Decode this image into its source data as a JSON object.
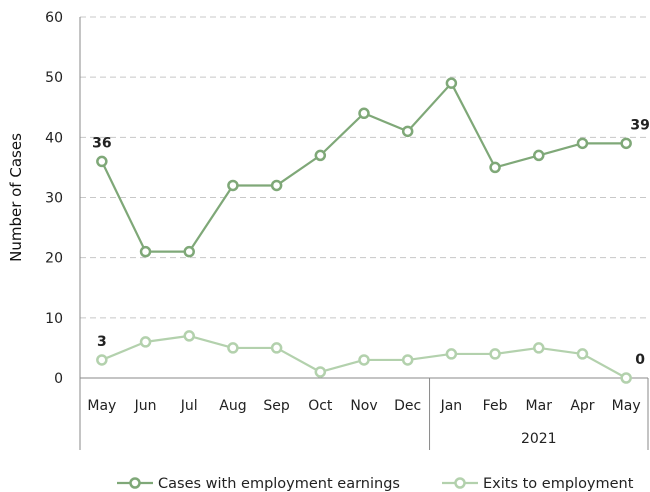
{
  "chart_data": {
    "type": "line",
    "ylabel": "Number of Cases",
    "ylim": [
      0,
      60
    ],
    "yticks": [
      0,
      10,
      20,
      30,
      40,
      50,
      60
    ],
    "grid": "horizontal dashed",
    "categories": [
      "May",
      "Jun",
      "Jul",
      "Aug",
      "Sep",
      "Oct",
      "Nov",
      "Dec",
      "Jan",
      "Feb",
      "Mar",
      "Apr",
      "May"
    ],
    "year_group_label": "2021",
    "legend_position": "bottom",
    "series": [
      {
        "name": "Cases with employment earnings",
        "values": [
          36,
          21,
          21,
          32,
          32,
          37,
          44,
          41,
          49,
          35,
          37,
          39,
          39
        ],
        "color": "#7fa878",
        "labeled_points": [
          {
            "index": 0,
            "label": "36"
          },
          {
            "index": 12,
            "label": "39"
          }
        ]
      },
      {
        "name": "Exits to employment",
        "values": [
          3,
          6,
          7,
          5,
          5,
          1,
          3,
          3,
          4,
          4,
          5,
          4,
          0
        ],
        "color": "#b3d1ad",
        "labeled_points": [
          {
            "index": 0,
            "label": "3"
          },
          {
            "index": 12,
            "label": "0"
          }
        ]
      }
    ]
  }
}
